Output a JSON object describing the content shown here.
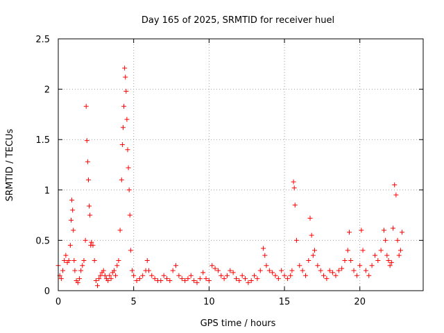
{
  "chart_data": {
    "type": "scatter",
    "title": "Day 165 of 2025, SRMTID for receiver huel",
    "xlabel": "GPS time / hours",
    "ylabel": "SRMTID / TECUs",
    "xlim": [
      0,
      24.2
    ],
    "ylim": [
      0,
      2.5
    ],
    "xticks": [
      0,
      5,
      10,
      15,
      20
    ],
    "xtick_labels": [
      "0",
      "5",
      "10",
      "15",
      "20"
    ],
    "yticks": [
      0,
      0.5,
      1,
      1.5,
      2,
      2.5
    ],
    "ytick_labels": [
      "0",
      "0.5",
      "1",
      "1.5",
      "2",
      "2.5"
    ],
    "grid": true,
    "marker": "plus",
    "marker_color": "#ff0000",
    "series": [
      {
        "name": "SRMTID",
        "x": [
          0.0,
          0.1,
          0.2,
          0.3,
          0.4,
          0.5,
          0.6,
          0.7,
          0.8,
          0.85,
          0.9,
          0.95,
          1.0,
          1.05,
          1.1,
          1.2,
          1.3,
          1.4,
          1.5,
          1.6,
          1.7,
          1.8,
          1.85,
          1.9,
          1.95,
          2.0,
          2.05,
          2.1,
          2.15,
          2.2,
          2.3,
          2.4,
          2.5,
          2.6,
          2.7,
          2.8,
          2.9,
          3.0,
          3.1,
          3.2,
          3.3,
          3.4,
          3.5,
          3.6,
          3.7,
          3.8,
          3.9,
          4.0,
          4.1,
          4.2,
          4.25,
          4.3,
          4.35,
          4.4,
          4.45,
          4.5,
          4.55,
          4.6,
          4.65,
          4.7,
          4.75,
          4.8,
          4.9,
          5.0,
          5.2,
          5.4,
          5.6,
          5.8,
          5.9,
          6.0,
          6.2,
          6.4,
          6.6,
          6.8,
          7.0,
          7.2,
          7.4,
          7.6,
          7.8,
          8.0,
          8.2,
          8.4,
          8.6,
          8.8,
          9.0,
          9.2,
          9.4,
          9.6,
          9.8,
          10.0,
          10.2,
          10.4,
          10.6,
          10.8,
          11.0,
          11.2,
          11.4,
          11.6,
          11.8,
          12.0,
          12.2,
          12.4,
          12.6,
          12.8,
          13.0,
          13.2,
          13.4,
          13.6,
          13.7,
          13.8,
          14.0,
          14.2,
          14.4,
          14.6,
          14.8,
          15.0,
          15.2,
          15.4,
          15.5,
          15.6,
          15.65,
          15.7,
          15.8,
          16.0,
          16.2,
          16.4,
          16.6,
          16.7,
          16.8,
          16.9,
          17.0,
          17.2,
          17.4,
          17.6,
          17.8,
          18.0,
          18.2,
          18.4,
          18.6,
          18.8,
          19.0,
          19.2,
          19.3,
          19.4,
          19.6,
          19.8,
          20.0,
          20.1,
          20.2,
          20.4,
          20.6,
          20.8,
          21.0,
          21.2,
          21.4,
          21.6,
          21.7,
          21.8,
          21.9,
          22.0,
          22.1,
          22.2,
          22.3,
          22.4,
          22.5,
          22.6,
          22.7,
          22.8
        ],
        "y": [
          0.25,
          0.15,
          0.12,
          0.2,
          0.3,
          0.35,
          0.28,
          0.3,
          0.45,
          0.7,
          0.9,
          0.8,
          0.6,
          0.3,
          0.2,
          0.1,
          0.08,
          0.12,
          0.2,
          0.25,
          0.3,
          0.5,
          1.83,
          1.49,
          1.28,
          1.1,
          0.84,
          0.75,
          0.45,
          0.48,
          0.45,
          0.3,
          0.1,
          0.05,
          0.12,
          0.15,
          0.18,
          0.2,
          0.15,
          0.12,
          0.1,
          0.15,
          0.12,
          0.18,
          0.2,
          0.15,
          0.25,
          0.3,
          0.6,
          1.1,
          1.45,
          1.62,
          1.83,
          2.21,
          2.12,
          1.98,
          1.7,
          1.4,
          1.22,
          1.0,
          0.75,
          0.4,
          0.2,
          0.15,
          0.1,
          0.12,
          0.15,
          0.2,
          0.3,
          0.2,
          0.15,
          0.12,
          0.1,
          0.1,
          0.15,
          0.12,
          0.1,
          0.2,
          0.25,
          0.15,
          0.12,
          0.1,
          0.12,
          0.15,
          0.1,
          0.08,
          0.12,
          0.18,
          0.12,
          0.1,
          0.25,
          0.22,
          0.2,
          0.15,
          0.12,
          0.15,
          0.2,
          0.18,
          0.12,
          0.1,
          0.15,
          0.12,
          0.08,
          0.1,
          0.15,
          0.12,
          0.2,
          0.42,
          0.35,
          0.25,
          0.2,
          0.18,
          0.15,
          0.12,
          0.2,
          0.15,
          0.12,
          0.15,
          0.2,
          1.08,
          1.02,
          0.85,
          0.5,
          0.25,
          0.2,
          0.15,
          0.3,
          0.72,
          0.55,
          0.35,
          0.4,
          0.25,
          0.2,
          0.15,
          0.12,
          0.2,
          0.18,
          0.15,
          0.2,
          0.22,
          0.3,
          0.4,
          0.58,
          0.3,
          0.2,
          0.15,
          0.25,
          0.6,
          0.4,
          0.2,
          0.15,
          0.25,
          0.35,
          0.3,
          0.4,
          0.6,
          0.5,
          0.35,
          0.3,
          0.25,
          0.28,
          0.62,
          1.05,
          0.95,
          0.5,
          0.35,
          0.4,
          0.58
        ]
      }
    ]
  }
}
